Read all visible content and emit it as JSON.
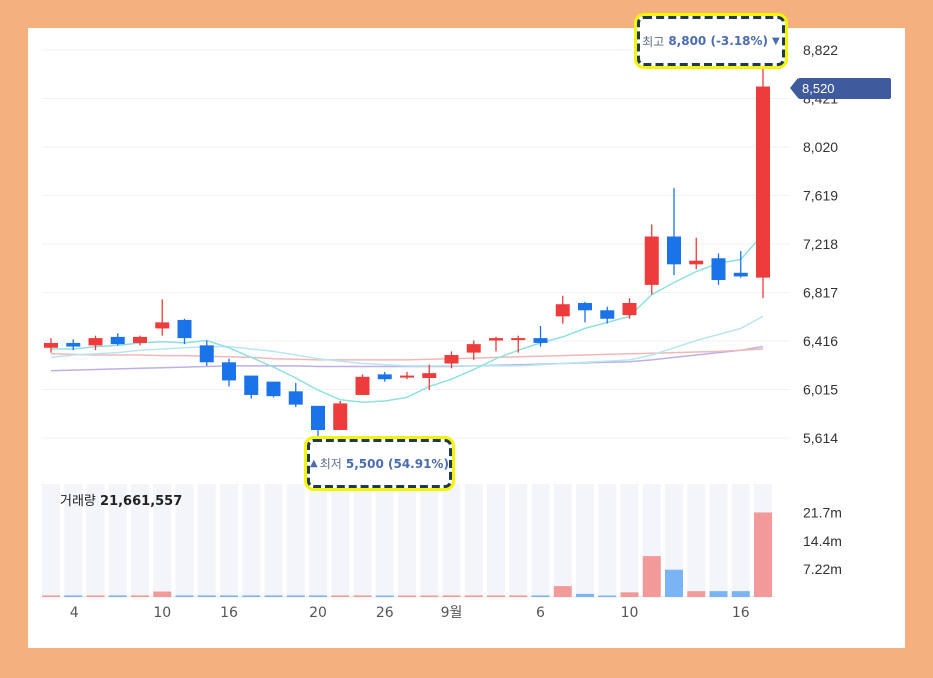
{
  "chart_data": {
    "type": "candlestick",
    "price_ticks": [
      "8,822",
      "8,421",
      "8,020",
      "7,619",
      "7,218",
      "6,817",
      "6,416",
      "6,015",
      "5,614"
    ],
    "volume_ticks": [
      "21.7m",
      "14.4m",
      "7.22m"
    ],
    "x_tick_labels": [
      "4",
      "10",
      "16",
      "20",
      "26",
      "9월",
      "6",
      "10",
      "16"
    ],
    "current_price": "8,520",
    "high": {
      "label": "최고",
      "value": "8,800 (-3.18%)",
      "arrow": "▼"
    },
    "low": {
      "label": "최저",
      "value": "5,500 (54.91%)",
      "arrow": "▲"
    },
    "volume": {
      "label": "거래량",
      "value": "21,661,557"
    },
    "colors": {
      "up": "#ee3b3b",
      "down": "#1a73e8",
      "ma_short": "#8fe0e0",
      "ma_mid": "#b8e6f0",
      "ma_long": "#f0b8b8",
      "ma_longest": "#c0aee8"
    },
    "candles": [
      {
        "o": 6360,
        "h": 6440,
        "l": 6320,
        "c": 6400,
        "v": 0.4
      },
      {
        "o": 6400,
        "h": 6430,
        "l": 6340,
        "c": 6370,
        "v": 0.4
      },
      {
        "o": 6380,
        "h": 6460,
        "l": 6340,
        "c": 6440,
        "v": 0.4
      },
      {
        "o": 6450,
        "h": 6480,
        "l": 6380,
        "c": 6390,
        "v": 0.4
      },
      {
        "o": 6400,
        "h": 6460,
        "l": 6380,
        "c": 6450,
        "v": 0.4
      },
      {
        "o": 6520,
        "h": 6760,
        "l": 6460,
        "c": 6570,
        "v": 1.4
      },
      {
        "o": 6590,
        "h": 6600,
        "l": 6390,
        "c": 6440,
        "v": 0.4
      },
      {
        "o": 6380,
        "h": 6420,
        "l": 6210,
        "c": 6240,
        "v": 0.4
      },
      {
        "o": 6240,
        "h": 6270,
        "l": 6040,
        "c": 6090,
        "v": 0.4
      },
      {
        "o": 6130,
        "h": 6130,
        "l": 5940,
        "c": 5970,
        "v": 0.4
      },
      {
        "o": 6080,
        "h": 6080,
        "l": 5950,
        "c": 5960,
        "v": 0.4
      },
      {
        "o": 6000,
        "h": 6070,
        "l": 5870,
        "c": 5890,
        "v": 0.4
      },
      {
        "o": 5880,
        "h": 5880,
        "l": 5500,
        "c": 5680,
        "v": 0.4
      },
      {
        "o": 5680,
        "h": 5920,
        "l": 5680,
        "c": 5900,
        "v": 0.4
      },
      {
        "o": 5970,
        "h": 6140,
        "l": 5970,
        "c": 6120,
        "v": 0.4
      },
      {
        "o": 6140,
        "h": 6160,
        "l": 6080,
        "c": 6100,
        "v": 0.3
      },
      {
        "o": 6130,
        "h": 6160,
        "l": 6100,
        "c": 6130,
        "v": 0.3
      },
      {
        "o": 6110,
        "h": 6220,
        "l": 6010,
        "c": 6150,
        "v": 0.3
      },
      {
        "o": 6230,
        "h": 6330,
        "l": 6190,
        "c": 6300,
        "v": 0.4
      },
      {
        "o": 6320,
        "h": 6420,
        "l": 6260,
        "c": 6390,
        "v": 0.4
      },
      {
        "o": 6420,
        "h": 6450,
        "l": 6330,
        "c": 6440,
        "v": 0.4
      },
      {
        "o": 6440,
        "h": 6460,
        "l": 6320,
        "c": 6440,
        "v": 0.4
      },
      {
        "o": 6440,
        "h": 6540,
        "l": 6370,
        "c": 6400,
        "v": 0.4
      },
      {
        "o": 6620,
        "h": 6790,
        "l": 6560,
        "c": 6720,
        "v": 2.8
      },
      {
        "o": 6730,
        "h": 6740,
        "l": 6570,
        "c": 6670,
        "v": 0.8
      },
      {
        "o": 6670,
        "h": 6700,
        "l": 6560,
        "c": 6600,
        "v": 0.3
      },
      {
        "o": 6630,
        "h": 6770,
        "l": 6600,
        "c": 6730,
        "v": 1.2
      },
      {
        "o": 6880,
        "h": 7380,
        "l": 6800,
        "c": 7280,
        "v": 10.5
      },
      {
        "o": 7280,
        "h": 7680,
        "l": 6960,
        "c": 7050,
        "v": 7.0
      },
      {
        "o": 7050,
        "h": 7270,
        "l": 7010,
        "c": 7080,
        "v": 1.5
      },
      {
        "o": 7100,
        "h": 7140,
        "l": 6880,
        "c": 6920,
        "v": 1.5
      },
      {
        "o": 6980,
        "h": 7160,
        "l": 6940,
        "c": 6950,
        "v": 1.5
      },
      {
        "o": 6940,
        "h": 8800,
        "l": 6770,
        "c": 8520,
        "v": 21.7
      }
    ],
    "ma_short": [
      6350,
      6350,
      6370,
      6380,
      6400,
      6410,
      6400,
      6420,
      6360,
      6280,
      6200,
      6110,
      6010,
      5930,
      5910,
      5920,
      5950,
      6040,
      6100,
      6180,
      6270,
      6340,
      6400,
      6450,
      6520,
      6570,
      6620,
      6800,
      6900,
      6990,
      7060,
      7090,
      7300
    ],
    "ma_mid": [
      6280,
      6300,
      6310,
      6320,
      6340,
      6350,
      6360,
      6370,
      6370,
      6350,
      6330,
      6300,
      6270,
      6250,
      6230,
      6220,
      6210,
      6210,
      6210,
      6210,
      6210,
      6210,
      6220,
      6230,
      6240,
      6250,
      6260,
      6300,
      6360,
      6420,
      6470,
      6520,
      6620
    ],
    "ma_long": [
      6310,
      6305,
      6300,
      6300,
      6300,
      6295,
      6295,
      6290,
      6285,
      6280,
      6270,
      6265,
      6260,
      6260,
      6260,
      6260,
      6260,
      6265,
      6270,
      6275,
      6280,
      6285,
      6290,
      6295,
      6300,
      6305,
      6310,
      6315,
      6320,
      6325,
      6330,
      6340,
      6350
    ],
    "ma_longest": [
      6170,
      6175,
      6180,
      6185,
      6190,
      6195,
      6200,
      6205,
      6210,
      6210,
      6210,
      6210,
      6205,
      6205,
      6205,
      6205,
      6205,
      6205,
      6205,
      6210,
      6215,
      6220,
      6225,
      6230,
      6235,
      6240,
      6245,
      6260,
      6280,
      6300,
      6320,
      6340,
      6370
    ],
    "price_range": [
      5500,
      8900
    ],
    "volume_range": [
      0,
      29
    ]
  }
}
